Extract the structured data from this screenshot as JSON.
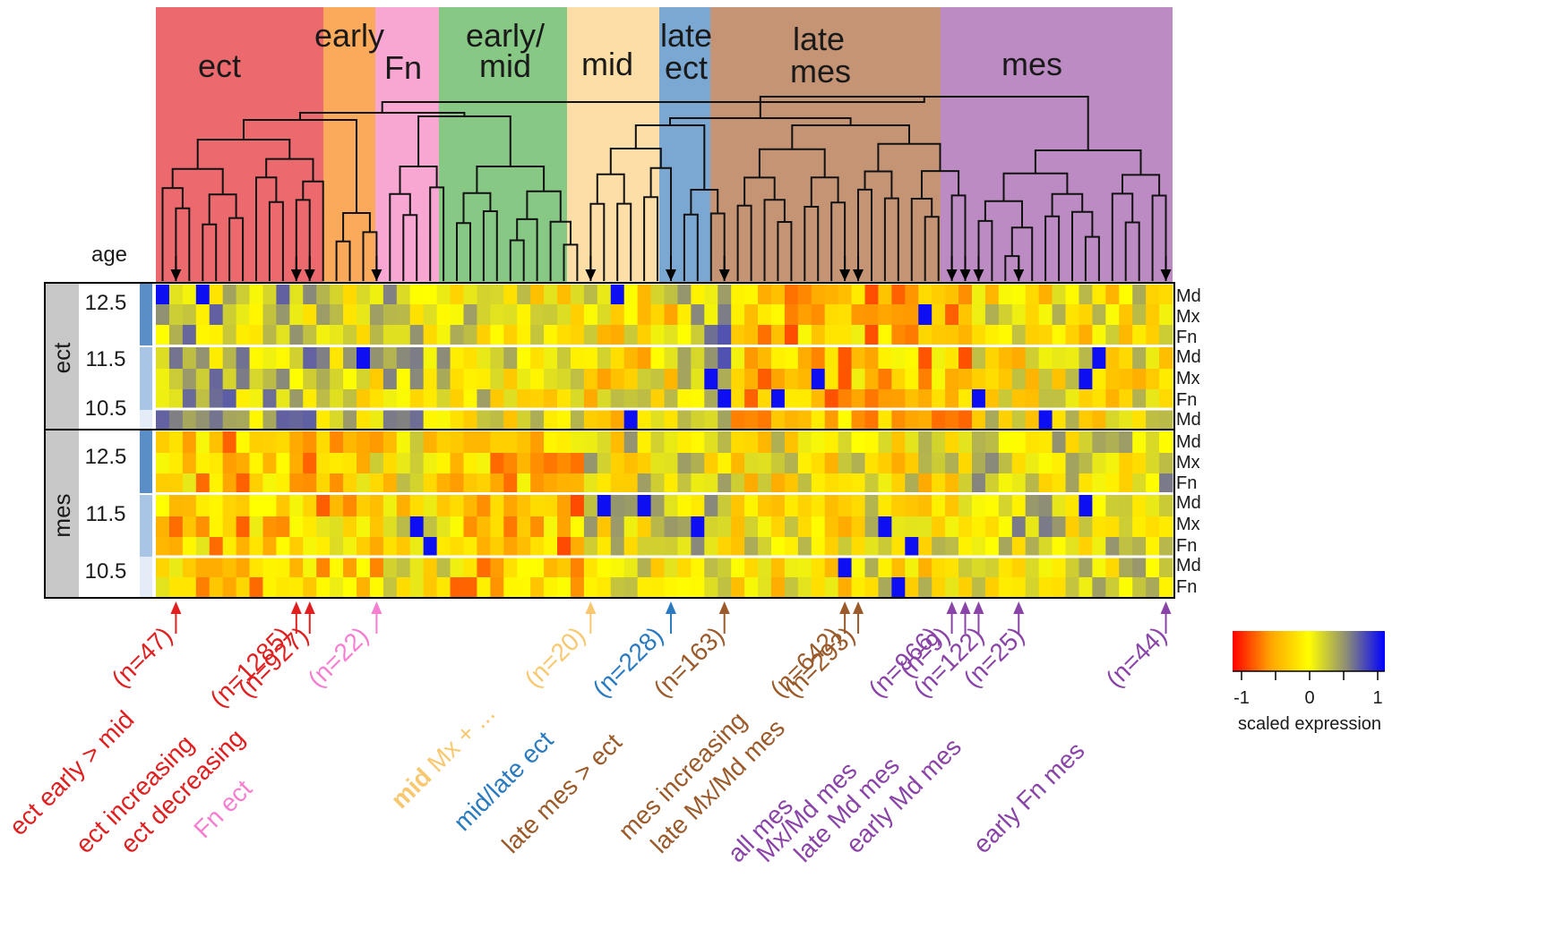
{
  "groups": [
    {
      "id": "ect",
      "lines": [
        "ect"
      ],
      "color": "#ec6a6d"
    },
    {
      "id": "early",
      "lines": [
        "early"
      ],
      "color": "#fba95a"
    },
    {
      "id": "fn",
      "lines": [
        "Fn"
      ],
      "color": "#f7a7d2"
    },
    {
      "id": "early-mid",
      "lines": [
        "early/",
        "mid"
      ],
      "color": "#87c884"
    },
    {
      "id": "mid",
      "lines": [
        "mid"
      ],
      "color": "#fcdea6"
    },
    {
      "id": "late-ect",
      "lines": [
        "late",
        "ect"
      ],
      "color": "#7ba8d2"
    },
    {
      "id": "late-mes",
      "lines": [
        "late",
        "mes"
      ],
      "color": "#c49475"
    },
    {
      "id": "mes",
      "lines": [
        "mes"
      ],
      "color": "#bd8bc4"
    }
  ],
  "labels": {
    "age": "age",
    "tissues": [
      "ect",
      "mes"
    ],
    "ages": [
      "12.5",
      "11.5",
      "10.5"
    ],
    "regions": [
      "Md",
      "Mx",
      "Fn"
    ]
  },
  "heatmap_rows": [
    "ect 12.5 Md",
    "ect 12.5 Mx",
    "ect 12.5 Fn",
    "ect 11.5 Md",
    "ect 11.5 Mx",
    "ect 11.5 Fn",
    "ect 10.5 Md",
    "mes 12.5 Md",
    "mes 12.5 Mx",
    "mes 12.5 Fn",
    "mes 11.5 Md",
    "mes 11.5 Mx",
    "mes 11.5 Fn",
    "mes 10.5 Md",
    "mes 10.5 Fn"
  ],
  "annotations": [
    {
      "text": "ect early > mid",
      "count": "(n=47)",
      "color": "#e02020"
    },
    {
      "text": "ect increasing",
      "count": "(n=1285)",
      "color": "#e02020"
    },
    {
      "text": "ect decreasing",
      "count": "(n=927)",
      "color": "#e02020"
    },
    {
      "text": "Fn ect",
      "count": "(n=22)",
      "color": "#f57ed0"
    },
    {
      "text_bold": "mid",
      "text": "Mx + ...",
      "count": "(n=20)",
      "color": "#f8c870"
    },
    {
      "text": "mid/late ect",
      "count": "(n=228)",
      "color": "#2a7ac0"
    },
    {
      "text": "late mes > ect",
      "count": "(n=163)",
      "color": "#9a5a2a"
    },
    {
      "text": "mes increasing",
      "count": "(n=642)",
      "color": "#9a5a2a"
    },
    {
      "text": "late Mx/Md mes",
      "count": "(n=293)",
      "color": "#9a5a2a"
    },
    {
      "text": "all mes",
      "count": "(n=966)",
      "color": "#8a44a8"
    },
    {
      "text": "Mx/Md mes",
      "count": "(n=9)",
      "color": "#8a44a8"
    },
    {
      "text": "late Md mes",
      "count": "(n=122)",
      "color": "#8a44a8"
    },
    {
      "text": "early Md mes",
      "count": "(n=25)",
      "color": "#8a44a8"
    },
    {
      "text": "early Fn mes",
      "count": "(n=44)",
      "color": "#8a44a8"
    }
  ],
  "colorbar": {
    "stops": [
      "#ff0000",
      "#ffa500",
      "#ffff00",
      "#8c8c78",
      "#0000ff"
    ],
    "ticks": [
      "-1",
      "0",
      "1"
    ],
    "label": "scaled expression"
  }
}
